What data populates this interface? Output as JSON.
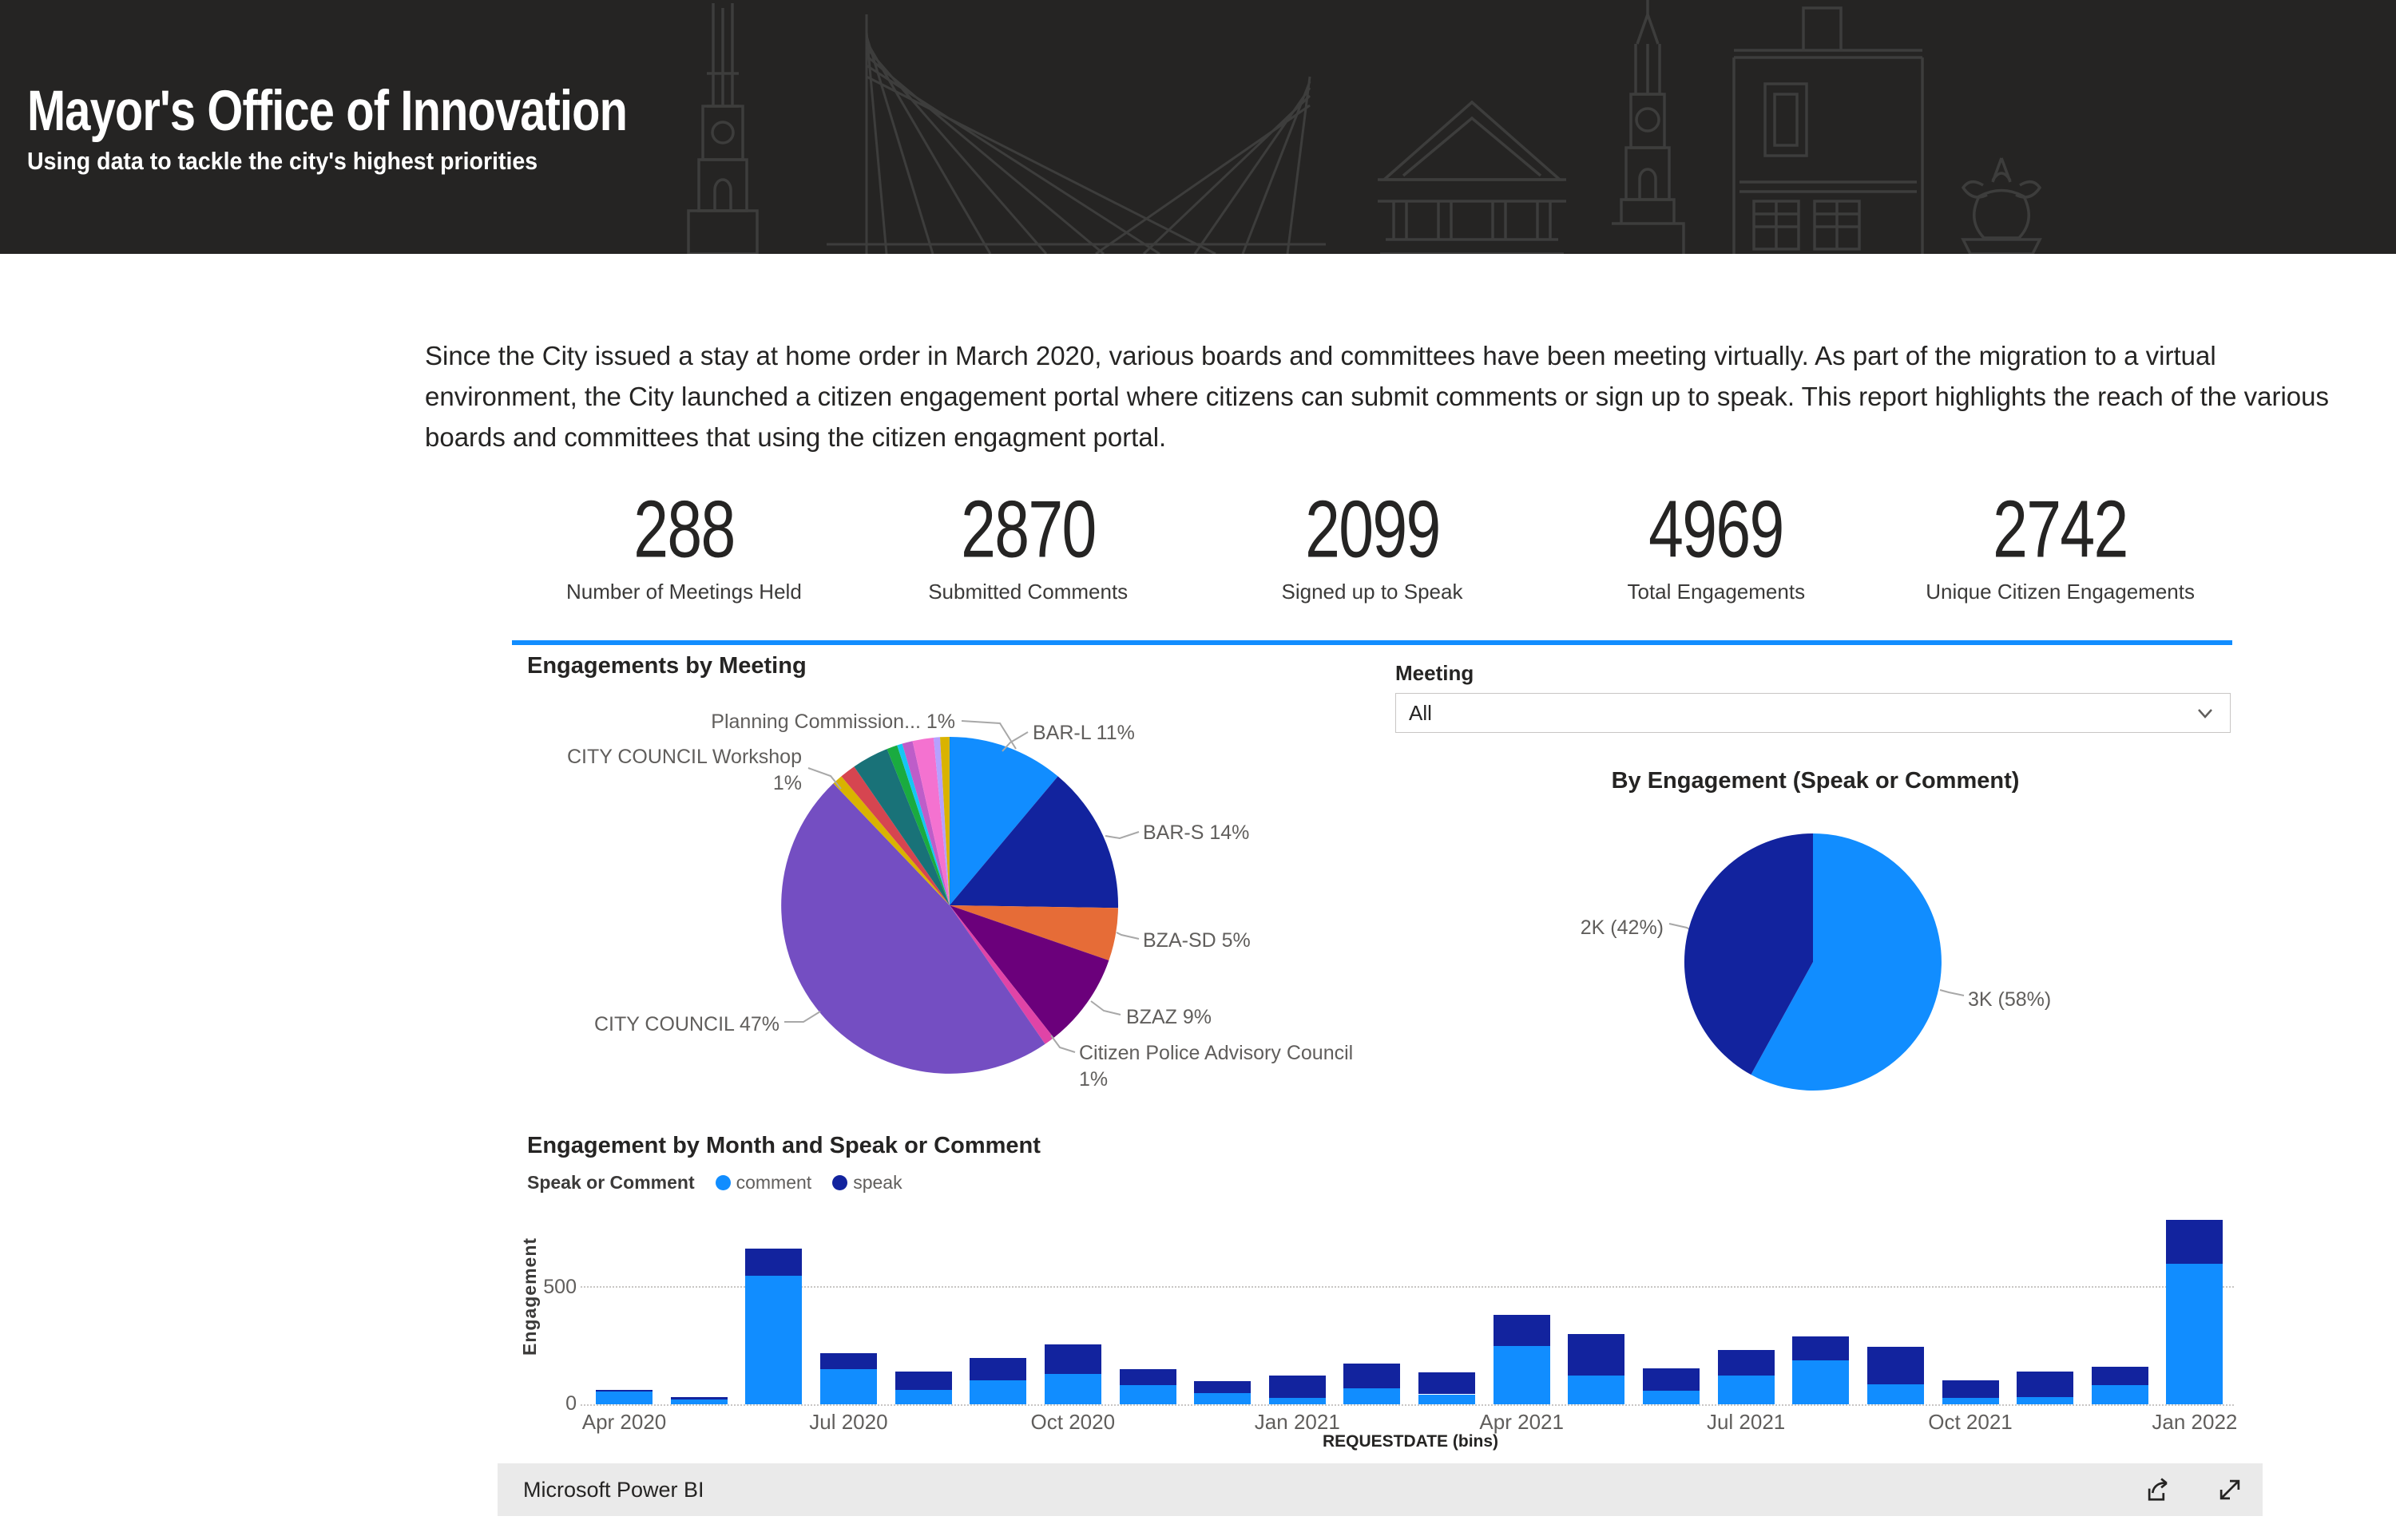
{
  "header": {
    "title": "Mayor's Office of Innovation",
    "subtitle": "Using data to tackle the city's highest priorities"
  },
  "intro": {
    "text": "Since the City issued a stay at home order in March 2020, various boards and committees have been meeting virtually. As part of the migration to a virtual environment, the City launched a citizen engagement portal where citizens can submit comments or sign up to speak. This report highlights the reach of the various boards and committees that using the citizen engagment portal."
  },
  "kpis": [
    {
      "value": "288",
      "label": "Number of Meetings Held"
    },
    {
      "value": "2870",
      "label": "Submitted Comments"
    },
    {
      "value": "2099",
      "label": "Signed up to Speak"
    },
    {
      "value": "4969",
      "label": "Total Engagements"
    },
    {
      "value": "2742",
      "label": "Unique Citizen Engagements"
    }
  ],
  "filter": {
    "label": "Meeting",
    "value": "All"
  },
  "colors": {
    "accent": "#118DFF",
    "comment": "#118DFF",
    "speak": "#12239E",
    "header_bg": "#252423",
    "footer_bg": "#eaeaea",
    "label_gray": "#605E5C"
  },
  "footer": {
    "brand": "Microsoft Power BI"
  },
  "chart_data": [
    {
      "type": "pie",
      "title": "Engagements by Meeting",
      "slices": [
        {
          "label": "BAR-L",
          "pct": 11,
          "color": "#118DFF",
          "callout": "BAR-L 11%"
        },
        {
          "label": "BAR-S",
          "pct": 14,
          "color": "#12239E",
          "callout": "BAR-S 14%"
        },
        {
          "label": "BZA-SD",
          "pct": 5,
          "color": "#E66C37",
          "callout": "BZA-SD 5%"
        },
        {
          "label": "BZAZ",
          "pct": 9,
          "color": "#6B007B",
          "callout": "BZAZ 9%"
        },
        {
          "label": "Citizen Police Advisory Council",
          "pct": 1,
          "color": "#E044A7",
          "callout_line1": "Citizen Police Advisory Council",
          "callout_line2": "1%"
        },
        {
          "label": "CITY COUNCIL",
          "pct": 47,
          "color": "#744EC2",
          "callout": "CITY COUNCIL 47%"
        },
        {
          "label": "CITY COUNCIL Workshop",
          "pct": 1,
          "color": "#D9B300",
          "callout_line1": "CITY COUNCIL Workshop",
          "callout_line2": "1%"
        },
        {
          "label": "",
          "pct": 1.5,
          "color": "#D64550"
        },
        {
          "label": "",
          "pct": 3.5,
          "color": "#197278"
        },
        {
          "label": "Planning Commission",
          "pct": 1,
          "color": "#1AAB40",
          "callout": "Planning Commission... 1%"
        },
        {
          "label": "",
          "pct": 0.5,
          "color": "#15C6F4"
        },
        {
          "label": "",
          "pct": 1,
          "color": "#BE5DC9"
        },
        {
          "label": "",
          "pct": 2,
          "color": "#F472D0"
        },
        {
          "label": "",
          "pct": 0.6,
          "color": "#B5A1FF"
        },
        {
          "label": "",
          "pct": 0.9,
          "color": "#D9B300"
        }
      ]
    },
    {
      "type": "pie",
      "title": "By Engagement (Speak or Comment)",
      "slices": [
        {
          "label": "comment",
          "pct": 58,
          "color": "#118DFF",
          "callout": "3K (58%)"
        },
        {
          "label": "speak",
          "pct": 42,
          "color": "#12239E",
          "callout": "2K (42%)"
        }
      ]
    },
    {
      "type": "stacked-bar",
      "title": "Engagement by Month and Speak or Comment",
      "legend": {
        "title": "Speak or Comment",
        "series": [
          "comment",
          "speak"
        ]
      },
      "xlabel": "REQUESTDATE (bins)",
      "ylabel": "Engagement",
      "yticks": [
        "0",
        "500"
      ],
      "ylim": [
        0,
        800
      ],
      "x_axis_labels": [
        "Apr 2020",
        "Jul 2020",
        "Oct 2020",
        "Jan 2021",
        "Apr 2021",
        "Jul 2021",
        "Oct 2021",
        "Jan 2022"
      ],
      "months": [
        "Apr 2020",
        "May 2020",
        "Jun 2020",
        "Jul 2020",
        "Aug 2020",
        "Sep 2020",
        "Oct 2020",
        "Nov 2020",
        "Dec 2020",
        "Jan 2021",
        "Feb 2021",
        "Mar 2021",
        "Apr 2021",
        "May 2021",
        "Jun 2021",
        "Jul 2021",
        "Aug 2021",
        "Sep 2021",
        "Oct 2021",
        "Nov 2021",
        "Dec 2021",
        "Jan 2022"
      ],
      "series": [
        {
          "name": "comment",
          "color": "#118DFF",
          "values": [
            55,
            20,
            545,
            150,
            60,
            100,
            130,
            80,
            48,
            26,
            68,
            42,
            247,
            123,
            56,
            123,
            186,
            83,
            27,
            30,
            81,
            595
          ]
        },
        {
          "name": "speak",
          "color": "#12239E",
          "values": [
            5,
            12,
            115,
            65,
            80,
            95,
            125,
            70,
            50,
            95,
            105,
            92,
            133,
            176,
            95,
            108,
            101,
            161,
            73,
            109,
            79,
            185
          ]
        }
      ]
    }
  ]
}
